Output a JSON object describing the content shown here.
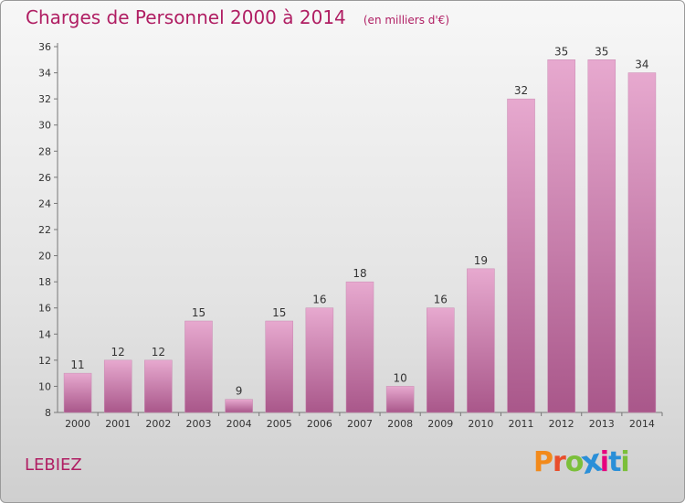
{
  "header": {
    "title": "Charges de Personnel 2000 à 2014",
    "subtitle": "(en milliers d'€)"
  },
  "footer": {
    "commune": "LEBIEZ",
    "brand_letters": [
      "P",
      "r",
      "o",
      "x",
      "i",
      "t",
      "i"
    ],
    "brand_colors": [
      "#f28a1b",
      "#e94e2b",
      "#7bbf3a",
      "#2a8fd8",
      "#e6007e",
      "#2a8fd8",
      "#7bbf3a"
    ]
  },
  "colors": {
    "bar_light": "#e7a9cf",
    "bar_dark": "#a9578a",
    "accent": "#b01e63"
  },
  "chart_data": {
    "type": "bar",
    "categories": [
      "2000",
      "2001",
      "2002",
      "2003",
      "2004",
      "2005",
      "2006",
      "2007",
      "2008",
      "2009",
      "2010",
      "2011",
      "2012",
      "2013",
      "2014"
    ],
    "values": [
      11,
      12,
      12,
      15,
      9,
      15,
      16,
      18,
      10,
      16,
      19,
      32,
      35,
      35,
      34
    ],
    "ylim": [
      8,
      36
    ],
    "yticks": [
      8,
      10,
      12,
      14,
      16,
      18,
      20,
      22,
      24,
      26,
      28,
      30,
      32,
      34,
      36
    ],
    "grid": false,
    "data_labels": true
  }
}
